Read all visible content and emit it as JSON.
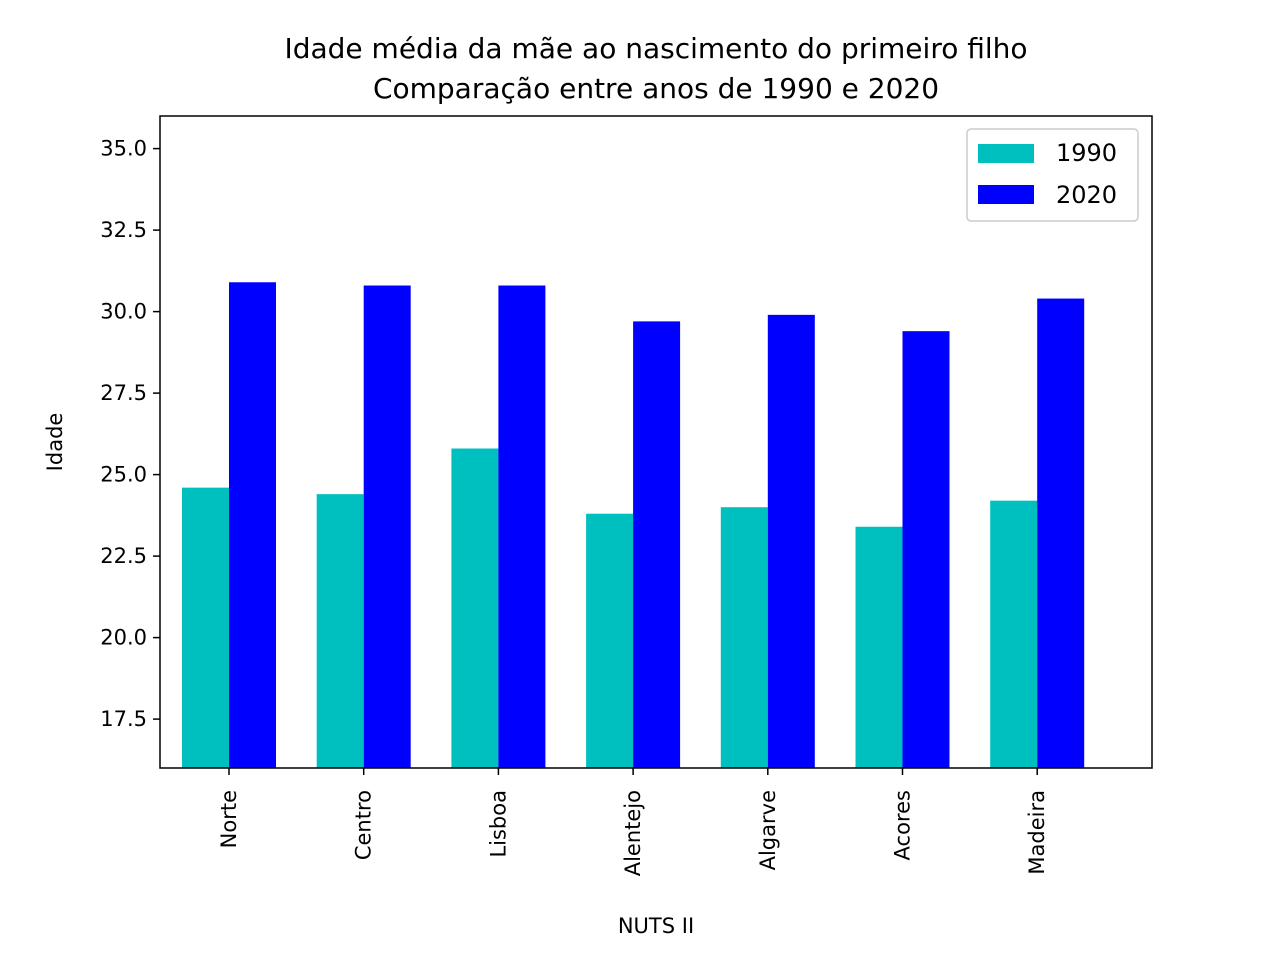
{
  "chart_data": {
    "type": "bar",
    "title": "Idade média da mãe ao nascimento do primeiro filho",
    "subtitle": "Comparação entre anos de 1990 e 2020",
    "xlabel": "NUTS II",
    "ylabel": "Idade",
    "categories": [
      "Norte",
      "Centro",
      "Lisboa",
      "Alentejo",
      "Algarve",
      "Acores",
      "Madeira"
    ],
    "series": [
      {
        "name": "1990",
        "color": "#00bfbf",
        "values": [
          24.6,
          24.4,
          25.8,
          23.8,
          24.0,
          23.4,
          24.2
        ]
      },
      {
        "name": "2020",
        "color": "#0000ff",
        "values": [
          30.9,
          30.8,
          30.8,
          29.7,
          29.9,
          29.4,
          30.4
        ]
      }
    ],
    "ylim": [
      16.0,
      36.0
    ],
    "yticks": [
      "17.5",
      "20.0",
      "22.5",
      "25.0",
      "27.5",
      "30.0",
      "32.5",
      "35.0"
    ],
    "grid": false,
    "legend_position": "top-right"
  }
}
